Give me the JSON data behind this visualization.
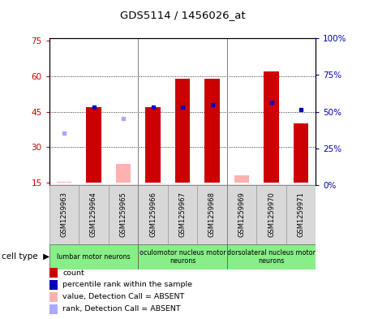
{
  "title": "GDS5114 / 1456026_at",
  "samples": [
    "GSM1259963",
    "GSM1259964",
    "GSM1259965",
    "GSM1259966",
    "GSM1259967",
    "GSM1259968",
    "GSM1259969",
    "GSM1259970",
    "GSM1259971"
  ],
  "count_values": [
    null,
    47,
    null,
    47,
    59,
    59,
    null,
    62,
    40
  ],
  "count_absent_values": [
    15.5,
    null,
    23,
    null,
    null,
    null,
    18,
    null,
    null
  ],
  "rank_values": [
    null,
    47,
    null,
    47,
    47,
    48,
    null,
    49,
    46
  ],
  "rank_absent_values": [
    36,
    null,
    42,
    null,
    null,
    null,
    null,
    null,
    null
  ],
  "ylim_left": [
    14,
    76
  ],
  "ylim_right": [
    0,
    100
  ],
  "yticks_left": [
    15,
    30,
    45,
    60,
    75
  ],
  "yticks_right": [
    0,
    25,
    50,
    75,
    100
  ],
  "ytick_labels_left": [
    "15",
    "30",
    "45",
    "60",
    "75"
  ],
  "ytick_labels_right": [
    "0%",
    "25%",
    "50%",
    "75%",
    "100%"
  ],
  "cell_type_groups": [
    {
      "label": "lumbar motor neurons",
      "start": 0,
      "end": 3
    },
    {
      "label": "oculomotor nucleus motor\nneurons",
      "start": 3,
      "end": 6
    },
    {
      "label": "dorsolateral nucleus motor\nneurons",
      "start": 6,
      "end": 9
    }
  ],
  "bar_width": 0.5,
  "count_color": "#CC0000",
  "count_absent_color": "#FFB0B0",
  "rank_color": "#0000BB",
  "rank_absent_color": "#AAAAFF",
  "baseline": 15,
  "cell_type_label": "cell type",
  "legend_items": [
    {
      "color": "#CC0000",
      "label": "count"
    },
    {
      "color": "#0000BB",
      "label": "percentile rank within the sample"
    },
    {
      "color": "#FFB0B0",
      "label": "value, Detection Call = ABSENT"
    },
    {
      "color": "#AAAAFF",
      "label": "rank, Detection Call = ABSENT"
    }
  ],
  "group_colors": [
    "#88EE88",
    "#88EE88",
    "#88EE88"
  ],
  "bg_color": "#D8D8D8",
  "plot_bg": "#FFFFFF",
  "divider_color": "#888888"
}
